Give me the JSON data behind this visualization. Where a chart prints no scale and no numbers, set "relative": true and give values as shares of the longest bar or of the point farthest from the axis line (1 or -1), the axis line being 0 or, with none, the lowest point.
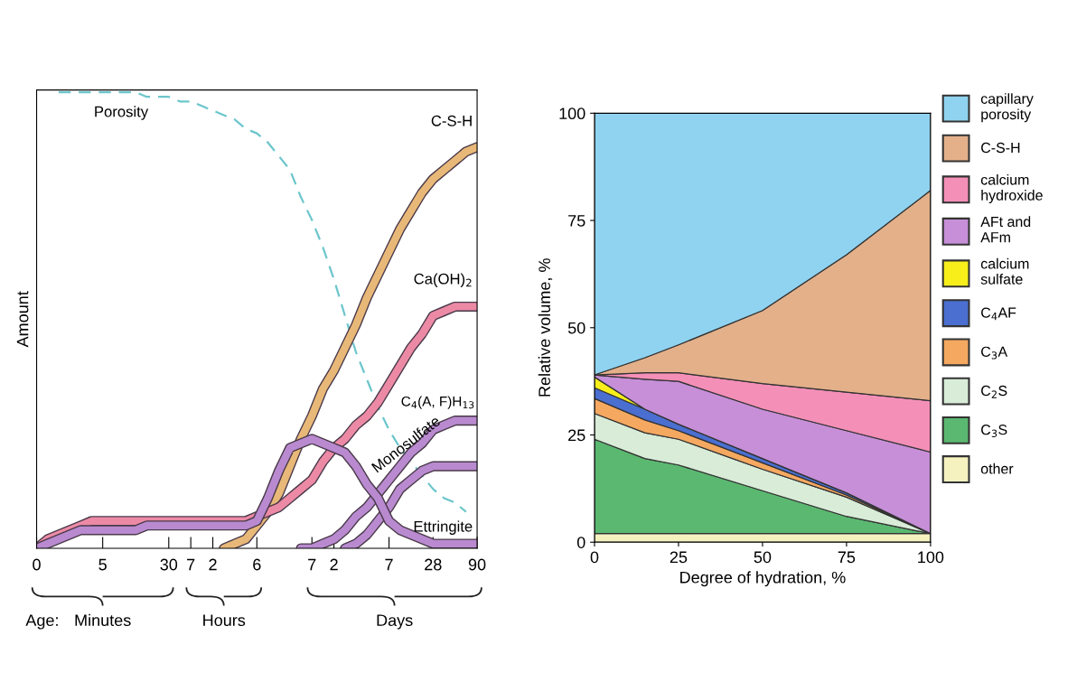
{
  "chart_data": [
    {
      "type": "line",
      "relative": true,
      "ylabel": "Amount",
      "legend": false,
      "grid": false,
      "categories": [
        "0",
        null,
        null,
        null,
        null,
        null,
        "5",
        null,
        null,
        null,
        null,
        null,
        "30",
        null,
        "7",
        null,
        "2",
        null,
        null,
        null,
        "6",
        null,
        null,
        null,
        null,
        "7",
        null,
        "2",
        null,
        null,
        null,
        null,
        "7",
        null,
        null,
        null,
        "28",
        null,
        null,
        null,
        "90"
      ],
      "annotations": [
        "Age:",
        "Minutes",
        "Hours",
        "Days"
      ],
      "series": [
        {
          "name": "Porosity",
          "color": "#6cc6cc",
          "line_style": "dashed",
          "values": [
            null,
            null,
            1.0,
            1.0,
            1.0,
            1.0,
            1.0,
            1.0,
            1.0,
            1.0,
            0.99,
            0.99,
            0.99,
            0.98,
            0.98,
            0.97,
            0.96,
            0.95,
            0.94,
            0.92,
            0.91,
            0.89,
            0.86,
            0.83,
            0.77,
            0.72,
            0.66,
            0.59,
            0.51,
            0.43,
            0.37,
            0.31,
            0.26,
            0.22,
            0.19,
            0.16,
            0.13,
            0.11,
            0.1,
            0.08,
            null
          ]
        },
        {
          "name": "C-S-H",
          "color": "#e8b878",
          "values": [
            null,
            null,
            null,
            null,
            null,
            null,
            null,
            null,
            null,
            null,
            null,
            null,
            null,
            null,
            null,
            null,
            null,
            0.0,
            0.01,
            0.02,
            0.05,
            0.08,
            0.12,
            0.18,
            0.24,
            0.29,
            0.35,
            0.39,
            0.44,
            0.49,
            0.55,
            0.6,
            0.65,
            0.7,
            0.74,
            0.78,
            0.81,
            0.83,
            0.85,
            0.87,
            0.88
          ]
        },
        {
          "name": "Ca(OH)$_{2}$",
          "color": "#ec8aa6",
          "values": [
            0.0,
            0.02,
            0.03,
            0.04,
            0.05,
            0.06,
            0.06,
            0.06,
            0.06,
            0.06,
            0.06,
            0.06,
            0.06,
            0.06,
            0.06,
            0.06,
            0.06,
            0.06,
            0.06,
            0.06,
            0.07,
            0.08,
            0.09,
            0.11,
            0.13,
            0.15,
            0.19,
            0.22,
            0.24,
            0.27,
            0.29,
            0.32,
            0.36,
            0.4,
            0.44,
            0.47,
            0.51,
            0.52,
            0.53,
            0.53,
            0.53
          ]
        },
        {
          "name": "C$_{4}$(A, F)H$_{13}$",
          "color": "#b98ad0",
          "values": [
            null,
            null,
            null,
            null,
            null,
            null,
            null,
            null,
            null,
            null,
            null,
            null,
            null,
            null,
            null,
            null,
            null,
            null,
            null,
            null,
            null,
            null,
            null,
            null,
            0.0,
            0.0,
            0.01,
            0.02,
            0.04,
            0.07,
            0.09,
            0.12,
            0.15,
            0.18,
            0.21,
            0.23,
            0.26,
            0.27,
            0.28,
            0.28,
            0.28
          ]
        },
        {
          "name": "Monosulfate",
          "color": "#b98ad0",
          "values": [
            null,
            null,
            null,
            null,
            null,
            null,
            null,
            null,
            null,
            null,
            null,
            null,
            null,
            null,
            null,
            null,
            null,
            null,
            null,
            null,
            null,
            null,
            null,
            null,
            null,
            null,
            null,
            null,
            0.0,
            0.01,
            0.03,
            0.06,
            0.09,
            0.13,
            0.15,
            0.17,
            0.18,
            0.18,
            0.18,
            0.18,
            0.18
          ]
        },
        {
          "name": "Ettringite",
          "color": "#b98ad0",
          "values": [
            0.0,
            0.01,
            0.02,
            0.03,
            0.04,
            0.04,
            0.04,
            0.04,
            0.04,
            0.04,
            0.05,
            0.05,
            0.05,
            0.05,
            0.05,
            0.05,
            0.05,
            0.05,
            0.05,
            0.05,
            0.06,
            0.11,
            0.17,
            0.22,
            0.23,
            0.24,
            0.23,
            0.22,
            0.21,
            0.18,
            0.14,
            0.11,
            0.06,
            0.04,
            0.03,
            0.02,
            0.01,
            0.01,
            0.01,
            0.01,
            0.01
          ]
        }
      ]
    },
    {
      "type": "area",
      "stacked": true,
      "xlabel": "Degree of hydration, %",
      "ylabel": "Relative volume, %",
      "legend": "right",
      "grid": false,
      "x": [
        0,
        15,
        25,
        50,
        75,
        100
      ],
      "xlim": [
        0,
        100
      ],
      "ylim": [
        0,
        100
      ],
      "xticks": [
        0,
        25,
        50,
        75,
        100
      ],
      "yticks": [
        0,
        25,
        50,
        75,
        100
      ],
      "series": [
        {
          "name": "other",
          "color": "#f5f2c0",
          "values": [
            2,
            2,
            2,
            2,
            2,
            2
          ]
        },
        {
          "name": "C$_{3}$S",
          "color": "#5bb870",
          "values": [
            22,
            17.5,
            16,
            10,
            4,
            0
          ]
        },
        {
          "name": "C$_{2}$S",
          "color": "#d8ecd8",
          "values": [
            6,
            6,
            6,
            5,
            4.5,
            0
          ]
        },
        {
          "name": "C$_{3}$A",
          "color": "#f5a860",
          "values": [
            3.5,
            3,
            2,
            1.5,
            0.5,
            0
          ]
        },
        {
          "name": "C$_{4}$AF",
          "color": "#4a6fd0",
          "values": [
            2.5,
            2.5,
            1.5,
            1,
            0.5,
            0
          ]
        },
        {
          "name": "calcium\nsulfate",
          "color": "#f7ee1a",
          "values": [
            2.5,
            0,
            0,
            0,
            0,
            0
          ]
        },
        {
          "name": "AFt and\nAFm",
          "color": "#c68fd8",
          "values": [
            0.5,
            7,
            10,
            11.5,
            14.5,
            19
          ]
        },
        {
          "name": "calcium\nhydroxide",
          "color": "#f48fb8",
          "values": [
            0,
            1.5,
            2,
            6,
            9,
            12
          ]
        },
        {
          "name": "C-S-H",
          "color": "#e3b08a",
          "values": [
            0,
            3.5,
            6.5,
            17,
            32,
            49
          ]
        },
        {
          "name": "capillary\nporosity",
          "color": "#8fd3f0",
          "values": [
            61,
            57,
            54,
            46,
            33,
            18
          ]
        }
      ]
    }
  ]
}
